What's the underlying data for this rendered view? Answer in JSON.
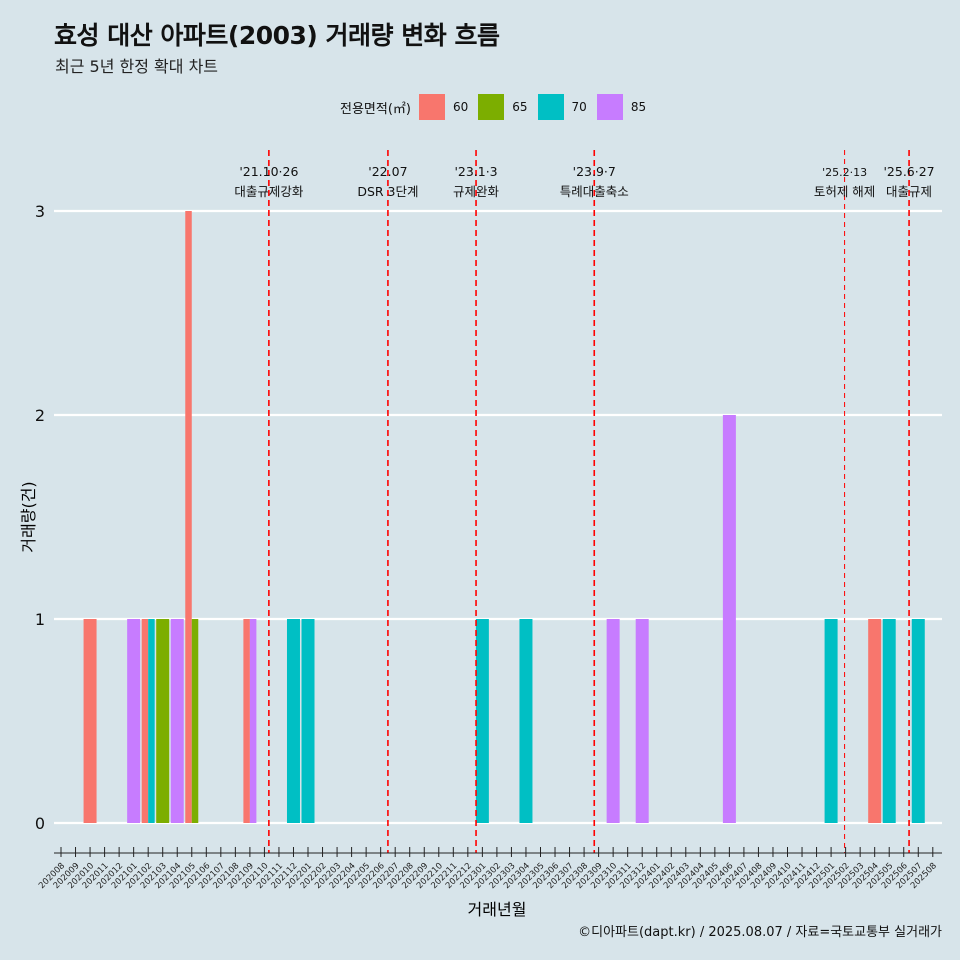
{
  "title": "효성 대산 아파트(2003) 거래량 변화 흐름",
  "subtitle": "최근 5년 한정 확대 차트",
  "caption": "©디아파트(dapt.kr) / 2025.08.07 / 자료=국토교통부 실거래가",
  "legend": {
    "title": "전용면적(㎡)",
    "items": [
      {
        "label": "60",
        "color": "#F8766D"
      },
      {
        "label": "65",
        "color": "#7CAE00"
      },
      {
        "label": "70",
        "color": "#00BFC4"
      },
      {
        "label": "85",
        "color": "#C77CFF"
      }
    ]
  },
  "chart_data": {
    "type": "bar",
    "title": "효성 대산 아파트(2003) 거래량 변화 흐름",
    "subtitle": "최근 5년 한정 확대 차트",
    "xlabel": "거래년월",
    "ylabel": "거래량(건)",
    "ylim": [
      0,
      3
    ],
    "y_ticks": [
      "0",
      "1",
      "2",
      "3"
    ],
    "grid": "horizontal",
    "legend_position": "top",
    "categories": [
      "202008",
      "202009",
      "202010",
      "202011",
      "202012",
      "202101",
      "202102",
      "202103",
      "202104",
      "202105",
      "202106",
      "202107",
      "202108",
      "202109",
      "202110",
      "202111",
      "202112",
      "202201",
      "202202",
      "202203",
      "202204",
      "202205",
      "202206",
      "202207",
      "202208",
      "202209",
      "202210",
      "202211",
      "202212",
      "202301",
      "202302",
      "202303",
      "202304",
      "202305",
      "202306",
      "202307",
      "202308",
      "202309",
      "202310",
      "202311",
      "202312",
      "202401",
      "202402",
      "202403",
      "202404",
      "202405",
      "202406",
      "202407",
      "202408",
      "202409",
      "202410",
      "202411",
      "202412",
      "202501",
      "202502",
      "202503",
      "202504",
      "202505",
      "202506",
      "202507",
      "202508"
    ],
    "series": [
      {
        "name": "60",
        "color": "#F8766D",
        "points": [
          {
            "x": "202010",
            "y": 1
          },
          {
            "x": "202102",
            "y": 1
          },
          {
            "x": "202105",
            "y": 3
          },
          {
            "x": "202109",
            "y": 1
          },
          {
            "x": "202504",
            "y": 1
          }
        ]
      },
      {
        "name": "65",
        "color": "#7CAE00",
        "points": [
          {
            "x": "202103",
            "y": 1
          },
          {
            "x": "202105",
            "y": 1
          }
        ]
      },
      {
        "name": "70",
        "color": "#00BFC4",
        "points": [
          {
            "x": "202102",
            "y": 1
          },
          {
            "x": "202112",
            "y": 1
          },
          {
            "x": "202201",
            "y": 1
          },
          {
            "x": "202301",
            "y": 1
          },
          {
            "x": "202304",
            "y": 1
          },
          {
            "x": "202501",
            "y": 1
          },
          {
            "x": "202505",
            "y": 1
          },
          {
            "x": "202507",
            "y": 1
          }
        ]
      },
      {
        "name": "85",
        "color": "#C77CFF",
        "points": [
          {
            "x": "202101",
            "y": 1
          },
          {
            "x": "202104",
            "y": 1
          },
          {
            "x": "202109",
            "y": 1
          },
          {
            "x": "202310",
            "y": 1
          },
          {
            "x": "202312",
            "y": 1
          },
          {
            "x": "202406",
            "y": 2
          }
        ]
      }
    ],
    "annotations": [
      {
        "date": "2021-10-26",
        "line1": "'21.10·26",
        "line2": "대출규제강화"
      },
      {
        "date": "2022-07-01",
        "line1": "'22.07",
        "line2": "DSR 3단계"
      },
      {
        "date": "2023-01-03",
        "line1": "'23.1·3",
        "line2": "규제완화"
      },
      {
        "date": "2023-09-07",
        "line1": "'23.9·7",
        "line2": "특례대출축소"
      },
      {
        "date": "2025-02-13",
        "line1": "'25.2·13",
        "line2": "토허제 해제"
      },
      {
        "date": "2025-06-27",
        "line1": "'25.6·27",
        "line2": "대출규제"
      }
    ],
    "annotation_line_color": "#FF0000"
  }
}
